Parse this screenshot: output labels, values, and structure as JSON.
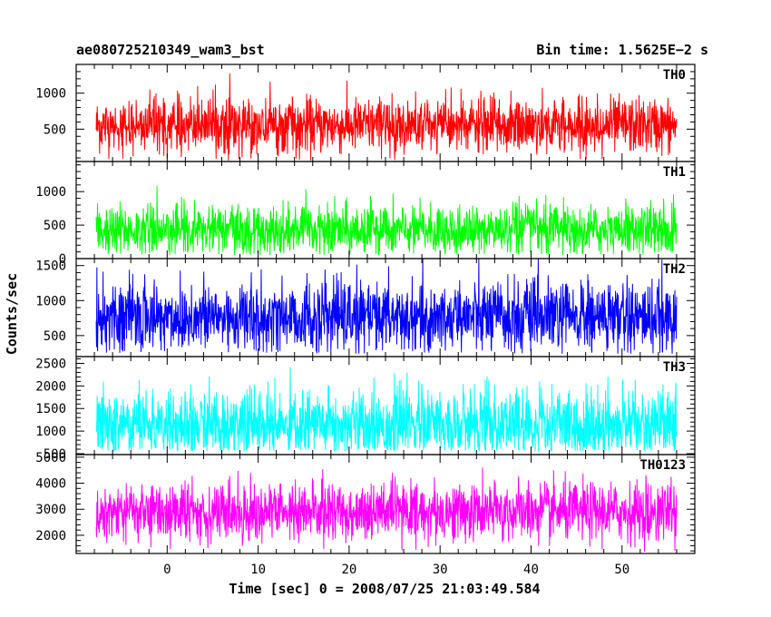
{
  "header": {
    "left_title": "ae080725210349_wam3_bst",
    "right_title": "Bin time: 1.5625E−2 s"
  },
  "chart_data": {
    "type": "line",
    "title": "ae080725210349_wam3_bst",
    "subtitle": "Bin time: 1.5625E−2 s",
    "xlabel": "Time [sec] 0 = 2008/07/25 21:03:49.584",
    "ylabel": "Counts/sec",
    "xlim": [
      -10,
      58
    ],
    "x_ticks": [
      0,
      10,
      20,
      30,
      40,
      50
    ],
    "x_start": -7.8,
    "x_end": 56,
    "bin_time": 0.015625,
    "grid": false,
    "panels": [
      {
        "name": "TH0",
        "color": "#ff0000",
        "ylim": [
          50,
          1400
        ],
        "y_ticks": [
          500,
          1000
        ],
        "mean": 550,
        "noise": 190,
        "floor": 60,
        "cap": 1400
      },
      {
        "name": "TH1",
        "color": "#00ff00",
        "ylim": [
          0,
          1450
        ],
        "y_ticks": [
          0,
          500,
          1000
        ],
        "mean": 420,
        "noise": 190,
        "floor": 50,
        "cap": 1450
      },
      {
        "name": "TH2",
        "color": "#0000ff",
        "ylim": [
          200,
          1600
        ],
        "y_ticks": [
          500,
          1000,
          1500
        ],
        "mean": 760,
        "noise": 260,
        "floor": 240,
        "cap": 1600
      },
      {
        "name": "TH3",
        "color": "#00ffff",
        "ylim": [
          480,
          2650
        ],
        "y_ticks": [
          500,
          1000,
          1500,
          2000,
          2500
        ],
        "mean": 1150,
        "noise": 380,
        "floor": 550,
        "cap": 2650
      },
      {
        "name": "TH0123",
        "color": "#ff00ff",
        "ylim": [
          1300,
          5100
        ],
        "y_ticks": [
          2000,
          3000,
          4000,
          5000
        ],
        "mean": 2900,
        "noise": 560,
        "floor": 1350,
        "cap": 5100
      }
    ]
  }
}
